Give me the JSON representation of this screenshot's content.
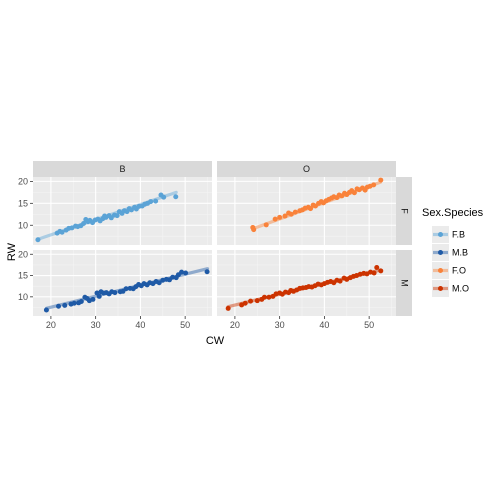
{
  "chart_data": {
    "type": "scatter",
    "xlabel": "CW",
    "ylabel": "RW",
    "xlim": [
      16,
      56
    ],
    "ylim": [
      5.5,
      21
    ],
    "x_ticks": [
      20,
      30,
      40,
      50
    ],
    "y_ticks": [
      10,
      15,
      20
    ],
    "grid": true,
    "facet_columns": [
      "B",
      "O"
    ],
    "facet_rows": [
      "F",
      "M"
    ],
    "legend": {
      "title": "Sex.Species",
      "placement": "right",
      "entries": [
        {
          "label": "F.B",
          "color": "#5ba3d6"
        },
        {
          "label": "M.B",
          "color": "#1f5aa6"
        },
        {
          "label": "F.O",
          "color": "#f9823a"
        },
        {
          "label": "M.O",
          "color": "#cc3300"
        }
      ]
    },
    "series": [
      {
        "name": "F.B",
        "col": "B",
        "row": "F",
        "color": "#5ba3d6",
        "fit": [
          [
            17.1,
            6.8
          ],
          [
            48.0,
            17.5
          ]
        ],
        "points": [
          [
            17.1,
            6.7
          ],
          [
            21.4,
            8.2
          ],
          [
            22.0,
            8.6
          ],
          [
            22.5,
            8.4
          ],
          [
            23.4,
            8.9
          ],
          [
            24.0,
            9.3
          ],
          [
            24.7,
            9.4
          ],
          [
            25.5,
            9.8
          ],
          [
            26.0,
            9.7
          ],
          [
            26.7,
            9.9
          ],
          [
            27.3,
            10.4
          ],
          [
            27.8,
            11.3
          ],
          [
            28.3,
            10.8
          ],
          [
            28.7,
            11.1
          ],
          [
            29.3,
            10.6
          ],
          [
            29.9,
            11.2
          ],
          [
            30.5,
            11.4
          ],
          [
            31.0,
            11.0
          ],
          [
            31.6,
            11.5
          ],
          [
            32.0,
            12.1
          ],
          [
            32.3,
            11.8
          ],
          [
            33.0,
            12.2
          ],
          [
            33.5,
            11.7
          ],
          [
            34.2,
            12.3
          ],
          [
            34.8,
            12.2
          ],
          [
            35.3,
            13.1
          ],
          [
            35.9,
            12.7
          ],
          [
            36.4,
            13.3
          ],
          [
            37.0,
            13.1
          ],
          [
            37.5,
            13.8
          ],
          [
            38.0,
            13.5
          ],
          [
            38.7,
            14.1
          ],
          [
            39.1,
            13.7
          ],
          [
            39.7,
            14.3
          ],
          [
            40.4,
            14.4
          ],
          [
            41.0,
            14.8
          ],
          [
            41.6,
            15.0
          ],
          [
            42.3,
            15.4
          ],
          [
            43.4,
            15.5
          ],
          [
            44.6,
            16.9
          ],
          [
            45.2,
            16.4
          ],
          [
            47.9,
            16.5
          ]
        ]
      },
      {
        "name": "M.B",
        "col": "B",
        "row": "M",
        "color": "#1f5aa6",
        "fit": [
          [
            19.0,
            7.3
          ],
          [
            55.0,
            16.6
          ]
        ],
        "points": [
          [
            19.0,
            6.9
          ],
          [
            21.7,
            7.8
          ],
          [
            23.1,
            8.0
          ],
          [
            24.5,
            8.3
          ],
          [
            25.2,
            8.5
          ],
          [
            26.2,
            8.6
          ],
          [
            26.8,
            8.9
          ],
          [
            27.6,
            9.9
          ],
          [
            28.1,
            9.6
          ],
          [
            28.6,
            9.1
          ],
          [
            29.4,
            9.4
          ],
          [
            30.3,
            10.9
          ],
          [
            30.8,
            10.1
          ],
          [
            31.2,
            11.2
          ],
          [
            31.8,
            10.9
          ],
          [
            32.4,
            11.0
          ],
          [
            33.0,
            10.7
          ],
          [
            33.6,
            11.2
          ],
          [
            34.3,
            11.0
          ],
          [
            35.5,
            11.2
          ],
          [
            36.1,
            11.3
          ],
          [
            36.8,
            11.9
          ],
          [
            37.7,
            12.0
          ],
          [
            38.4,
            11.9
          ],
          [
            39.0,
            12.4
          ],
          [
            39.6,
            12.9
          ],
          [
            40.2,
            12.6
          ],
          [
            40.8,
            13.1
          ],
          [
            41.5,
            12.8
          ],
          [
            42.1,
            13.3
          ],
          [
            42.8,
            13.1
          ],
          [
            43.5,
            13.6
          ],
          [
            44.2,
            13.3
          ],
          [
            45.0,
            13.9
          ],
          [
            45.8,
            14.1
          ],
          [
            46.5,
            14.0
          ],
          [
            47.2,
            14.6
          ],
          [
            48.0,
            14.5
          ],
          [
            48.5,
            15.2
          ],
          [
            49.2,
            15.8
          ],
          [
            50.1,
            15.6
          ],
          [
            54.9,
            15.9
          ]
        ]
      },
      {
        "name": "F.O",
        "col": "O",
        "row": "F",
        "color": "#f9823a",
        "fit": [
          [
            24.0,
            9.2
          ],
          [
            52.5,
            19.8
          ]
        ],
        "points": [
          [
            24.0,
            9.5
          ],
          [
            24.2,
            9.0
          ],
          [
            27.0,
            10.1
          ],
          [
            29.0,
            11.4
          ],
          [
            30.0,
            11.8
          ],
          [
            31.2,
            12.1
          ],
          [
            32.0,
            12.8
          ],
          [
            32.6,
            12.5
          ],
          [
            33.5,
            13.0
          ],
          [
            34.5,
            13.3
          ],
          [
            35.1,
            13.5
          ],
          [
            35.7,
            13.9
          ],
          [
            36.4,
            14.1
          ],
          [
            36.9,
            13.8
          ],
          [
            37.5,
            14.6
          ],
          [
            38.0,
            14.4
          ],
          [
            38.7,
            15.0
          ],
          [
            39.3,
            15.4
          ],
          [
            39.8,
            15.1
          ],
          [
            40.4,
            15.6
          ],
          [
            41.0,
            15.9
          ],
          [
            41.6,
            16.2
          ],
          [
            42.1,
            16.5
          ],
          [
            42.8,
            16.3
          ],
          [
            43.3,
            16.9
          ],
          [
            43.9,
            16.7
          ],
          [
            44.5,
            17.3
          ],
          [
            45.0,
            17.0
          ],
          [
            45.6,
            17.5
          ],
          [
            46.1,
            17.9
          ],
          [
            46.7,
            17.4
          ],
          [
            47.3,
            18.3
          ],
          [
            47.8,
            18.1
          ],
          [
            48.5,
            18.5
          ],
          [
            49.1,
            18.0
          ],
          [
            49.6,
            18.7
          ],
          [
            50.2,
            18.9
          ],
          [
            51.0,
            19.2
          ],
          [
            52.6,
            20.3
          ]
        ]
      },
      {
        "name": "M.O",
        "col": "O",
        "row": "M",
        "color": "#cc3300",
        "fit": [
          [
            18.5,
            7.7
          ],
          [
            52.5,
            16.3
          ]
        ],
        "points": [
          [
            18.5,
            7.3
          ],
          [
            21.5,
            8.1
          ],
          [
            22.3,
            8.5
          ],
          [
            23.5,
            9.0
          ],
          [
            25.0,
            9.1
          ],
          [
            26.0,
            9.4
          ],
          [
            26.6,
            9.9
          ],
          [
            27.6,
            9.9
          ],
          [
            28.5,
            10.1
          ],
          [
            29.2,
            10.7
          ],
          [
            30.0,
            10.9
          ],
          [
            30.6,
            10.6
          ],
          [
            31.3,
            11.1
          ],
          [
            32.0,
            11.0
          ],
          [
            32.5,
            11.5
          ],
          [
            33.1,
            11.3
          ],
          [
            33.8,
            11.6
          ],
          [
            34.5,
            12.0
          ],
          [
            35.2,
            12.1
          ],
          [
            35.9,
            12.2
          ],
          [
            36.5,
            12.4
          ],
          [
            37.2,
            12.3
          ],
          [
            37.9,
            12.6
          ],
          [
            38.6,
            13.0
          ],
          [
            39.3,
            12.8
          ],
          [
            40.0,
            13.1
          ],
          [
            40.7,
            13.4
          ],
          [
            41.4,
            13.6
          ],
          [
            42.1,
            13.3
          ],
          [
            42.8,
            13.9
          ],
          [
            43.5,
            13.7
          ],
          [
            44.4,
            14.4
          ],
          [
            45.0,
            14.1
          ],
          [
            45.8,
            14.5
          ],
          [
            46.5,
            14.8
          ],
          [
            47.2,
            15.0
          ],
          [
            48.0,
            15.3
          ],
          [
            48.8,
            15.5
          ],
          [
            49.5,
            15.4
          ],
          [
            50.3,
            15.8
          ],
          [
            51.1,
            15.6
          ],
          [
            51.7,
            16.9
          ],
          [
            52.6,
            16.1
          ]
        ]
      }
    ]
  }
}
